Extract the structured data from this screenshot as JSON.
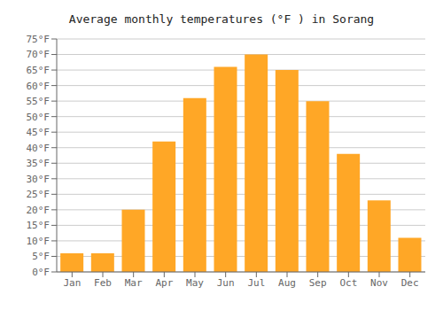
{
  "chart_data": {
    "type": "bar",
    "title": "Average monthly temperatures (°F ) in Sorang",
    "categories": [
      "Jan",
      "Feb",
      "Mar",
      "Apr",
      "May",
      "Jun",
      "Jul",
      "Aug",
      "Sep",
      "Oct",
      "Nov",
      "Dec"
    ],
    "values": [
      6,
      6,
      20,
      42,
      56,
      66,
      70,
      65,
      55,
      38,
      23,
      11
    ],
    "color": "#FFA726",
    "ylim": [
      0,
      75
    ],
    "yticks": [
      {
        "value": 0,
        "label": "0°F"
      },
      {
        "value": 5,
        "label": "5°F"
      },
      {
        "value": 10,
        "label": "10°F"
      },
      {
        "value": 15,
        "label": "15°F"
      },
      {
        "value": 20,
        "label": "20°F"
      },
      {
        "value": 25,
        "label": "25°F"
      },
      {
        "value": 30,
        "label": "30°F"
      },
      {
        "value": 35,
        "label": "35°F"
      },
      {
        "value": 40,
        "label": "40°F"
      },
      {
        "value": 45,
        "label": "45°F"
      },
      {
        "value": 50,
        "label": "50°F"
      },
      {
        "value": 55,
        "label": "55°F"
      },
      {
        "value": 60,
        "label": "60°F"
      },
      {
        "value": 65,
        "label": "65°F"
      },
      {
        "value": 70,
        "label": "70°F"
      },
      {
        "value": 75,
        "label": "75°F"
      }
    ],
    "grid": true
  }
}
